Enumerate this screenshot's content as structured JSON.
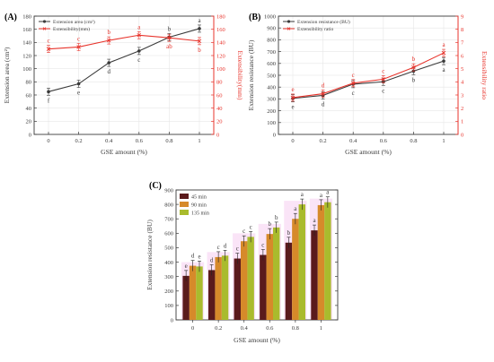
{
  "colors": {
    "black": "#3a3a3a",
    "red": "#e8342c",
    "grid": "#e6e6e6",
    "bar45": "#5a1a1c",
    "bar90": "#d68a2a",
    "bar135": "#a9bb2d",
    "glow": "#f3c3ee"
  },
  "chart_data": [
    {
      "type": "line",
      "panel_label": "(A)",
      "xlabel": "GSE amount (%)",
      "ylabel_left": "Extension area (cm²)",
      "ylabel_right": "Extensibility(mm)",
      "x": [
        0,
        0.2,
        0.4,
        0.6,
        0.8,
        1
      ],
      "x_ticks": [
        "0",
        "0.2",
        "0.4",
        "0.6",
        "0.8",
        "1"
      ],
      "ylim_left": [
        0,
        180
      ],
      "yticks_left": [
        "0",
        "20",
        "40",
        "60",
        "80",
        "100",
        "120",
        "140",
        "160",
        "180"
      ],
      "ylim_right": [
        0,
        180
      ],
      "yticks_right": [
        "0",
        "20",
        "40",
        "60",
        "80",
        "100",
        "120",
        "140",
        "160",
        "180"
      ],
      "legend_position": "top-left",
      "series": [
        {
          "name": "Extension area (cm²)",
          "axis": "left",
          "color": "black",
          "values": [
            65,
            77,
            109,
            127,
            148,
            161
          ],
          "letters": [
            "f",
            "e",
            "d",
            "c",
            "b",
            "a"
          ],
          "letter_pos": [
            "below",
            "below",
            "below",
            "below",
            "above",
            "above"
          ]
        },
        {
          "name": "Extensibility(mm)",
          "axis": "right",
          "color": "red",
          "values": [
            130,
            133,
            143,
            151,
            147,
            142
          ],
          "letters": [
            "c",
            "c",
            "b",
            "a",
            "ab",
            "b"
          ],
          "letter_pos": [
            "above",
            "above",
            "above",
            "above",
            "below",
            "below"
          ]
        }
      ]
    },
    {
      "type": "line",
      "panel_label": "(B)",
      "xlabel": "GSE amount (%)",
      "ylabel_left": "Extension resistance (BU)",
      "ylabel_right": "Extensibility ratio",
      "x": [
        0,
        0.2,
        0.4,
        0.6,
        0.8,
        1
      ],
      "x_ticks": [
        "0",
        "0.2",
        "0.4",
        "0.6",
        "0.8",
        "1"
      ],
      "ylim_left": [
        0,
        1000
      ],
      "yticks_left": [
        "0",
        "100",
        "200",
        "300",
        "400",
        "500",
        "600",
        "700",
        "800",
        "900",
        "1000"
      ],
      "ylim_right": [
        0,
        9
      ],
      "yticks_right": [
        "0",
        "1",
        "2",
        "3",
        "4",
        "5",
        "6",
        "7",
        "8",
        "9"
      ],
      "legend_position": "top-left",
      "series": [
        {
          "name": "Extension resistance (BU)",
          "axis": "left",
          "color": "black",
          "values": [
            305,
            330,
            425,
            445,
            535,
            620
          ],
          "letters": [
            "e",
            "d",
            "c",
            "c",
            "b",
            "a"
          ],
          "letter_pos": [
            "below",
            "below",
            "below",
            "below",
            "below",
            "below"
          ]
        },
        {
          "name": "Extensibility ratio",
          "axis": "right",
          "color": "red",
          "values": [
            2.8,
            3.1,
            3.9,
            4.2,
            5.1,
            6.2
          ],
          "letters": [
            "e",
            "d",
            "c",
            "c",
            "b",
            "a"
          ],
          "letter_pos": [
            "above",
            "above",
            "above",
            "above",
            "above",
            "above"
          ]
        }
      ]
    },
    {
      "type": "bar",
      "panel_label": "(C)",
      "xlabel": "GSE amount (%)",
      "ylabel": "Extension resistance (BU)",
      "categories": [
        "0",
        "0.2",
        "0.4",
        "0.6",
        "0.8",
        "1"
      ],
      "ylim": [
        0,
        900
      ],
      "yticks": [
        "0",
        "100",
        "200",
        "300",
        "400",
        "500",
        "600",
        "700",
        "800",
        "900"
      ],
      "legend_position": "top-left",
      "series": [
        {
          "name": "45 min",
          "color": "bar45",
          "values": [
            305,
            345,
            425,
            450,
            535,
            620
          ],
          "letters": [
            "e",
            "d",
            "c",
            "c",
            "b",
            "a"
          ]
        },
        {
          "name": "90 min",
          "color": "bar90",
          "values": [
            375,
            435,
            545,
            595,
            700,
            795
          ],
          "letters": [
            "d",
            "c",
            "c",
            "b",
            "a",
            "a"
          ]
        },
        {
          "name": "135 min",
          "color": "bar135",
          "values": [
            370,
            445,
            575,
            640,
            800,
            815
          ],
          "letters": [
            "e",
            "d",
            "c",
            "b",
            "a",
            "a"
          ]
        }
      ]
    }
  ]
}
